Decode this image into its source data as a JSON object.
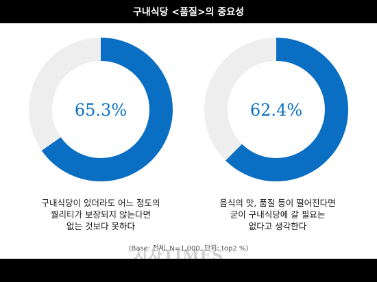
{
  "title": "구내식당 <품질>의 중요성",
  "chart_data": [
    {
      "type": "pie",
      "style": "donut",
      "value": 65.3,
      "max": 100,
      "label": "65.3%",
      "caption": "구내식당이 있더라도 어느 정도의\n퀄리티가 보장되지 않는다면\n없는 것보다 못하다",
      "colors": {
        "filled": "#0a6fc2",
        "remaining": "#eeeeee"
      }
    },
    {
      "type": "pie",
      "style": "donut",
      "value": 62.4,
      "max": 100,
      "label": "62.4%",
      "caption": "음식의 맛, 품질 등이 떨어진다면\n굳이 구내식당에 갈 필요는\n없다고 생각한다",
      "colors": {
        "filled": "#0a6fc2",
        "remaining": "#eeeeee"
      }
    }
  ],
  "footnote": "(Base: 전체, N=1,000, 단위: top2 %)",
  "watermark": "시사TIMES"
}
